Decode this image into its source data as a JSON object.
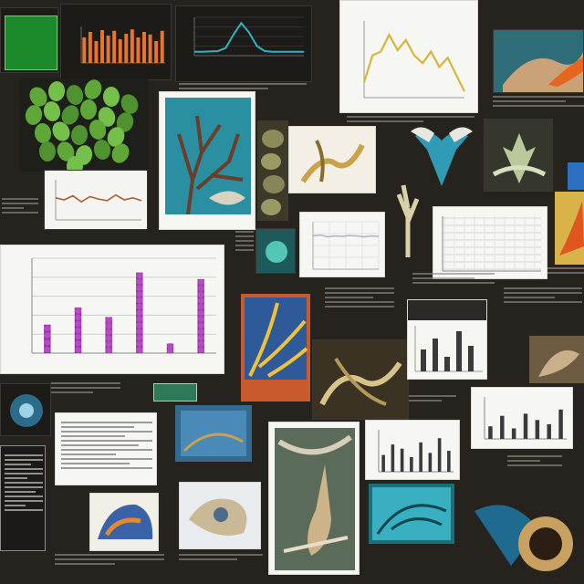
{
  "collage": {
    "background": "#26231f",
    "accent_colors": {
      "green_panel": "#1c8a2a",
      "orange_bars": "#e8752a",
      "cyan_line": "#2fb3c9",
      "gold_line": "#d8b53a",
      "purple_bars": "#9b2ea8",
      "teal_panel": "#2a8fa0"
    }
  },
  "chart_data": [
    {
      "type": "bar",
      "categories": [
        "",
        "",
        "",
        "",
        "",
        ""
      ],
      "values": [
        30,
        48,
        38,
        85,
        10,
        78
      ],
      "ylim": [
        0,
        100
      ],
      "grid": true,
      "colors": [
        "#9b2ea8"
      ]
    },
    {
      "type": "line",
      "x": [
        0,
        1,
        2,
        3,
        4,
        5,
        6,
        7,
        8,
        9,
        10,
        11,
        12
      ],
      "y": [
        20,
        55,
        60,
        82,
        62,
        75,
        55,
        45,
        60,
        40,
        52,
        30,
        8
      ],
      "ylim": [
        0,
        100
      ],
      "colors": [
        "#d8b53a"
      ]
    },
    {
      "type": "bar",
      "categories": [
        "",
        "",
        "",
        "",
        "",
        "",
        "",
        "",
        "",
        "",
        "",
        "",
        "",
        ""
      ],
      "values": [
        70,
        85,
        60,
        90,
        75,
        88,
        65,
        80,
        92,
        70,
        85,
        78,
        60,
        88
      ],
      "ylim": [
        0,
        100
      ],
      "colors": [
        "#e8752a"
      ]
    },
    {
      "type": "line",
      "x": [
        0,
        1,
        2,
        3,
        4,
        5,
        6,
        7,
        8,
        9,
        10,
        11,
        12,
        13,
        14
      ],
      "y": [
        10,
        10,
        11,
        12,
        20,
        55,
        85,
        60,
        25,
        12,
        10,
        10,
        10,
        10,
        10
      ],
      "ylim": [
        0,
        100
      ],
      "colors": [
        "#2fb3c9"
      ]
    },
    {
      "type": "line",
      "x": [
        0,
        1,
        2,
        3,
        4,
        5,
        6,
        7,
        8,
        9,
        10
      ],
      "y": [
        55,
        50,
        60,
        45,
        58,
        52,
        48,
        62,
        50,
        55,
        48
      ],
      "ylim": [
        0,
        100
      ],
      "colors": [
        "#b05a3a"
      ]
    },
    {
      "type": "bar",
      "categories": [
        "",
        "",
        "",
        "",
        "",
        "",
        "",
        ""
      ],
      "values": [
        40,
        65,
        55,
        35,
        70,
        45,
        80,
        50
      ],
      "ylim": [
        0,
        100
      ],
      "colors": [
        "#3a3a3a"
      ]
    },
    {
      "type": "bar",
      "categories": [
        "",
        "",
        "",
        "",
        "",
        "",
        ""
      ],
      "values": [
        30,
        55,
        25,
        60,
        45,
        35,
        70
      ],
      "ylim": [
        0,
        100
      ],
      "colors": [
        "#3a3a3a"
      ]
    },
    {
      "type": "line",
      "x": [
        0,
        1,
        2,
        3,
        4,
        5,
        6,
        7,
        8,
        9
      ],
      "y": [
        70,
        72,
        68,
        70,
        69,
        71,
        70,
        68,
        70,
        69
      ],
      "ylim": [
        0,
        100
      ],
      "colors": [
        "#b0a8c8"
      ]
    }
  ]
}
